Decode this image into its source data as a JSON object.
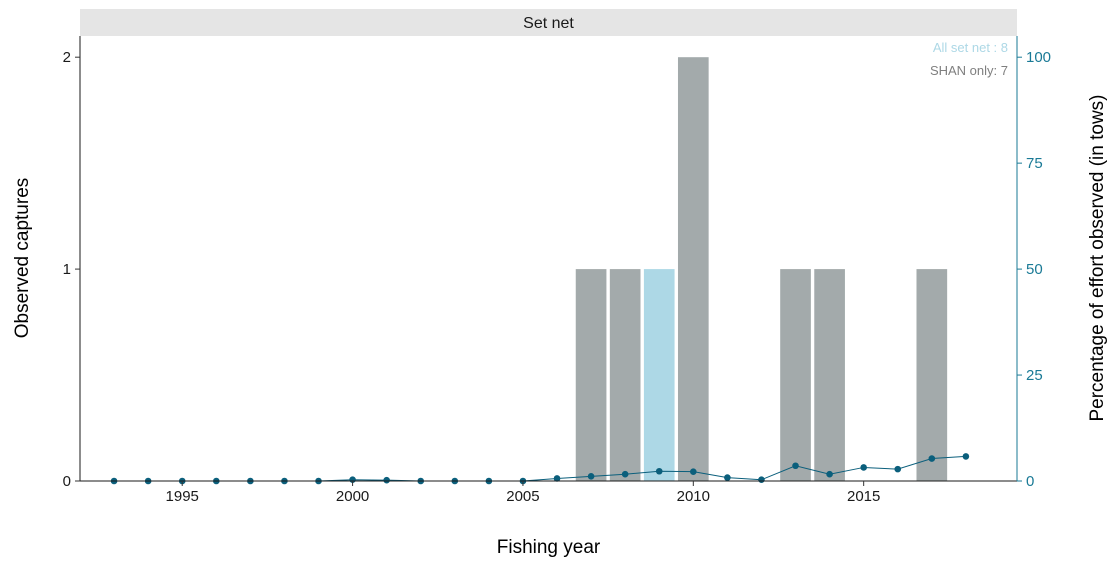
{
  "chart_data": {
    "type": "bar",
    "panel_title": "Set net",
    "xlabel": "Fishing year",
    "ylabel": "Observed captures",
    "ylabel_right": "Percentage of effort observed (in tows)",
    "xlim": [
      1992,
      2019.5
    ],
    "ylim": [
      0,
      2.1
    ],
    "ylim_right": [
      0,
      105
    ],
    "x_ticks": [
      1995,
      2000,
      2005,
      2010,
      2015
    ],
    "y_ticks": [
      0,
      1,
      2
    ],
    "y_ticks_right": [
      0,
      25,
      50,
      75,
      100
    ],
    "legend": [
      {
        "text": "All set net : 8",
        "color": "#add8e6"
      },
      {
        "text": "SHAN only: 7",
        "color": "#7f7f7f"
      }
    ],
    "colors": {
      "bar_shan": "#a3aaab",
      "bar_all": "#add8e6",
      "effort_line": "#0b5f7c",
      "right_axis": "#1a7a96",
      "strip_bg": "#e5e5e5"
    },
    "bars": [
      {
        "year": 2007,
        "value": 1,
        "group": "shan"
      },
      {
        "year": 2008,
        "value": 1,
        "group": "shan"
      },
      {
        "year": 2009,
        "value": 1,
        "group": "all"
      },
      {
        "year": 2010,
        "value": 2,
        "group": "shan"
      },
      {
        "year": 2013,
        "value": 1,
        "group": "shan"
      },
      {
        "year": 2014,
        "value": 1,
        "group": "shan"
      },
      {
        "year": 2017,
        "value": 1,
        "group": "shan"
      }
    ],
    "effort_series": {
      "name": "",
      "x": [
        1993,
        1994,
        1995,
        1996,
        1997,
        1998,
        1999,
        2000,
        2001,
        2002,
        2003,
        2004,
        2005,
        2006,
        2007,
        2008,
        2009,
        2010,
        2011,
        2012,
        2013,
        2014,
        2015,
        2016,
        2017,
        2018
      ],
      "y": [
        0,
        0,
        0,
        0,
        0,
        0,
        0,
        0.3,
        0.2,
        0,
        0,
        0,
        0,
        0.6,
        1.1,
        1.6,
        2.3,
        2.2,
        0.8,
        0.3,
        3.6,
        1.6,
        3.2,
        2.8,
        5.3,
        5.8
      ]
    }
  }
}
